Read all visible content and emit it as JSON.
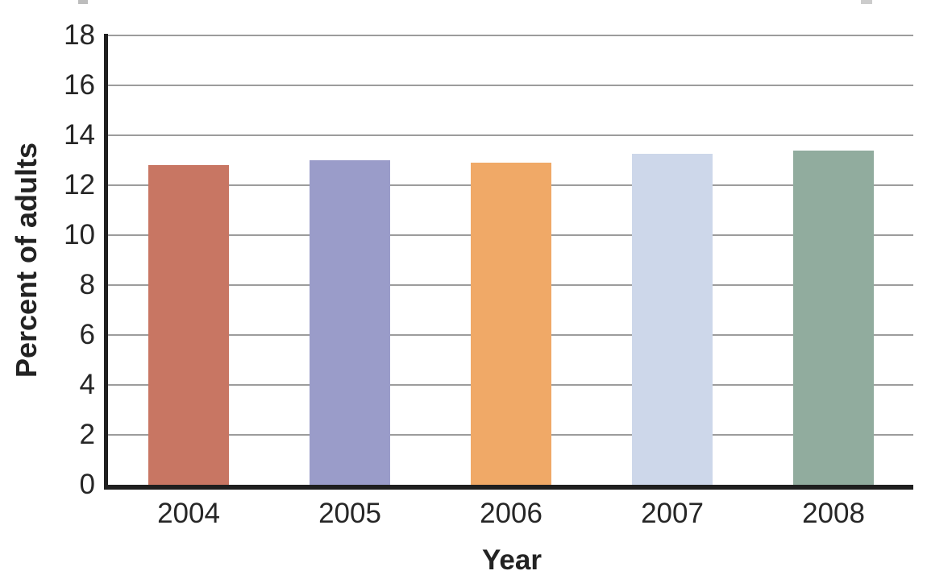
{
  "figure": {
    "background_color": "#ffffff",
    "axis_color": "#1f1f1f",
    "gridline_color": "#9c9c9c",
    "text_color": "#262626"
  },
  "chart_data": {
    "type": "bar",
    "title": "",
    "xlabel": "Year",
    "ylabel": "Percent of adults",
    "categories": [
      "2004",
      "2005",
      "2006",
      "2007",
      "2008"
    ],
    "values": [
      12.8,
      13.0,
      12.9,
      13.25,
      13.4
    ],
    "bar_colors": [
      "#c87663",
      "#9a9cc9",
      "#f0a967",
      "#cdd7ea",
      "#91ac9e"
    ],
    "ylim": [
      0,
      18
    ],
    "yticks": [
      0,
      2,
      4,
      6,
      8,
      10,
      12,
      14,
      16,
      18
    ],
    "grid": "horizontal",
    "legend": "none"
  }
}
